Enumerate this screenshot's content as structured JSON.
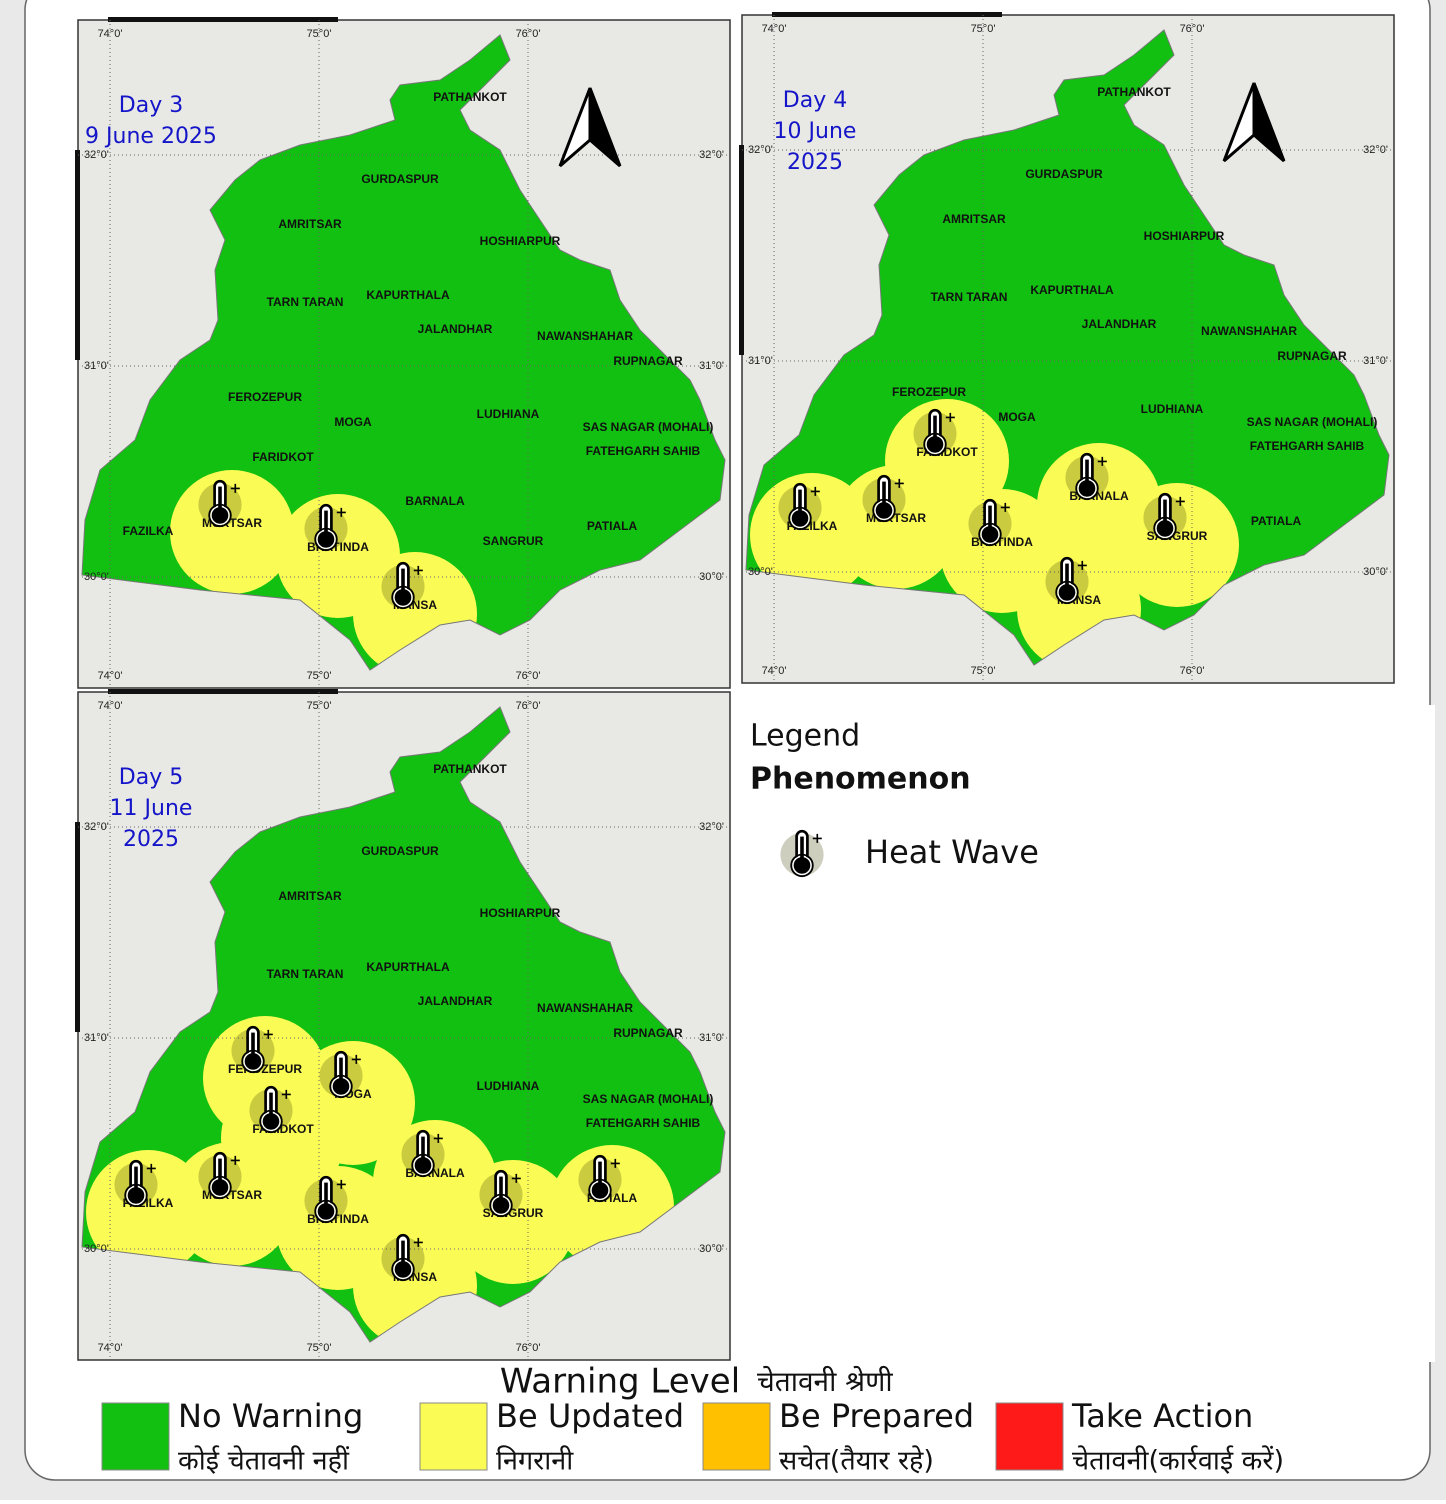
{
  "district_names": [
    "PATHANKOT",
    "GURDASPUR",
    "AMRITSAR",
    "HOSHIARPUR",
    "TARN TARAN",
    "KAPURTHALA",
    "JALANDHAR",
    "NAWANSHAHAR",
    "RUPNAGAR",
    "FEROZEPUR",
    "MOGA",
    "LUDHIANA",
    "SAS NAGAR (MOHALI)",
    "FATEHGARH SAHIB",
    "FARIDKOT",
    "MUKTSAR",
    "FAZILKA",
    "BHATINDA",
    "BARNALA",
    "SANGRUR",
    "PATIALA",
    "MANSA"
  ],
  "grid": {
    "lon": [
      {
        "value": 74,
        "label": "74°0'"
      },
      {
        "value": 75,
        "label": "75°0'"
      },
      {
        "value": 76,
        "label": "76°0'"
      }
    ],
    "lat": [
      {
        "value": 32,
        "label": "32°0'"
      },
      {
        "value": 31,
        "label": "31°0'"
      },
      {
        "value": 30,
        "label": "30°0'"
      }
    ]
  },
  "maps": [
    {
      "label_lines": [
        "Day 3",
        "9 June 2025"
      ],
      "north_arrow": true,
      "levels": [
        0,
        0,
        0,
        0,
        0,
        0,
        0,
        0,
        0,
        0,
        0,
        0,
        0,
        0,
        0,
        1,
        0,
        1,
        0,
        0,
        0,
        1
      ],
      "heat_wave": [
        false,
        false,
        false,
        false,
        false,
        false,
        false,
        false,
        false,
        false,
        false,
        false,
        false,
        false,
        false,
        true,
        false,
        true,
        false,
        false,
        false,
        true
      ]
    },
    {
      "label_lines": [
        "Day 4",
        "10 June",
        "2025"
      ],
      "north_arrow": true,
      "levels": [
        0,
        0,
        0,
        0,
        0,
        0,
        0,
        0,
        0,
        0,
        0,
        0,
        0,
        0,
        1,
        1,
        1,
        1,
        1,
        1,
        0,
        1
      ],
      "heat_wave": [
        false,
        false,
        false,
        false,
        false,
        false,
        false,
        false,
        false,
        false,
        false,
        false,
        false,
        false,
        true,
        true,
        true,
        true,
        true,
        true,
        false,
        true
      ]
    },
    {
      "label_lines": [
        "Day 5",
        "11 June",
        "2025"
      ],
      "north_arrow": false,
      "levels": [
        0,
        0,
        0,
        0,
        0,
        0,
        0,
        0,
        0,
        1,
        1,
        0,
        0,
        0,
        1,
        1,
        1,
        1,
        1,
        1,
        1,
        1
      ],
      "heat_wave": [
        false,
        false,
        false,
        false,
        false,
        false,
        false,
        false,
        false,
        true,
        true,
        false,
        false,
        false,
        true,
        true,
        true,
        true,
        true,
        true,
        true,
        true
      ]
    }
  ],
  "legend": {
    "title": "Legend",
    "subtitle": "Phenomenon",
    "item": "Heat Wave"
  },
  "warning_level": {
    "title": "Warning Level",
    "title_hi": "चेतावनी श्रेणी",
    "levels": [
      {
        "en": "No Warning",
        "hi": "कोई चेतावनी नहीं",
        "color": "#12c012"
      },
      {
        "en": "Be Updated",
        "hi": "निगरानी",
        "color": "#fbfb55"
      },
      {
        "en": "Be Prepared",
        "hi": "सचेत(तैयार रहे)",
        "color": "#ffc000"
      },
      {
        "en": "Take Action",
        "hi": "चेतावनी(कार्रवाई करें)",
        "color": "#ff1a1a"
      }
    ]
  }
}
